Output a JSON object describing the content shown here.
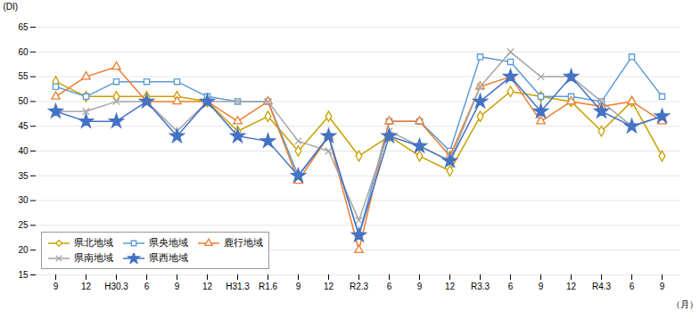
{
  "chart_data": {
    "type": "line",
    "ylabel": "(DI)",
    "xlabel": "（月）",
    "categories": [
      "9",
      "12",
      "H30.3",
      "6",
      "9",
      "12",
      "H31.3",
      "R1.6",
      "9",
      "12",
      "R2.3",
      "6",
      "9",
      "12",
      "R3.3",
      "6",
      "9",
      "12",
      "R4.3",
      "6",
      "9"
    ],
    "ylim": [
      15,
      65
    ],
    "yticks": [
      15,
      20,
      25,
      30,
      35,
      40,
      45,
      50,
      55,
      60,
      65
    ],
    "grid": true,
    "legend": "lower left",
    "series": [
      {
        "name": "県北地域",
        "color": "#C8A000",
        "marker": "diamond",
        "values": [
          54,
          51,
          51,
          51,
          51,
          50,
          44,
          47,
          40,
          47,
          39,
          43,
          39,
          36,
          47,
          52,
          51,
          50,
          44,
          50,
          39
        ]
      },
      {
        "name": "県央地域",
        "color": "#5B9BD5",
        "marker": "square",
        "values": [
          53,
          51,
          54,
          54,
          54,
          51,
          50,
          50,
          35,
          43,
          23,
          46,
          46,
          40,
          59,
          58,
          51,
          51,
          50,
          59,
          51
        ]
      },
      {
        "name": "鹿行地域",
        "color": "#ED7D31",
        "marker": "triangle",
        "values": [
          51,
          55,
          57,
          50,
          50,
          50,
          46,
          50,
          34,
          43,
          20,
          46,
          46,
          39,
          53,
          55,
          46,
          50,
          49,
          50,
          46
        ]
      },
      {
        "name": "県南地域",
        "color": "#A5A5A5",
        "marker": "x",
        "values": [
          48,
          48,
          50,
          50,
          44,
          50,
          50,
          50,
          42,
          40,
          26,
          44,
          41,
          38,
          53,
          60,
          55,
          55,
          50,
          45,
          47
        ]
      },
      {
        "name": "県西地域",
        "color": "#4472C4",
        "marker": "star",
        "values": [
          48,
          46,
          46,
          50,
          43,
          50,
          43,
          42,
          35,
          43,
          23,
          43,
          41,
          38,
          50,
          55,
          48,
          55,
          48,
          45,
          47
        ]
      }
    ]
  }
}
